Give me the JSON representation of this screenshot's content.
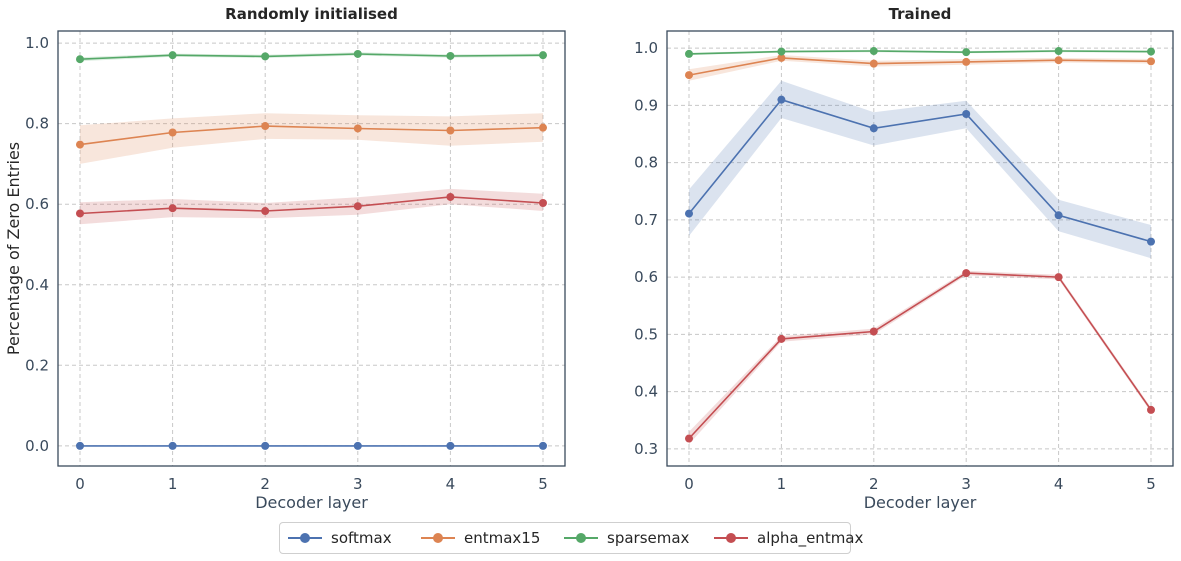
{
  "colors": {
    "softmax": "#4c72b0",
    "entmax15": "#dd8452",
    "sparsemax": "#55a868",
    "alpha_entmax": "#c44e52",
    "axis": "#3a4a5c",
    "grid": "#c8c8c8",
    "tick_text": "#3a4a5c"
  },
  "legend": {
    "entries": [
      "softmax",
      "entmax15",
      "sparsemax",
      "alpha_entmax"
    ],
    "placement": "bottom-center"
  },
  "chart_data": [
    {
      "type": "line",
      "title": "Randomly initialised",
      "xlabel": "Decoder layer",
      "ylabel": "Percentage of Zero Entries",
      "x": [
        0,
        1,
        2,
        3,
        4,
        5
      ],
      "xticks": [
        "0",
        "1",
        "2",
        "3",
        "4",
        "5"
      ],
      "ylim": [
        -0.05,
        1.03
      ],
      "yticks": [
        "0.0",
        "0.2",
        "0.4",
        "0.6",
        "0.8",
        "1.0"
      ],
      "grid": true,
      "series": [
        {
          "name": "softmax",
          "values": [
            0.0,
            0.0,
            0.0,
            0.0,
            0.0,
            0.0
          ],
          "lower": [
            0.0,
            0.0,
            0.0,
            0.0,
            0.0,
            0.0
          ],
          "upper": [
            0.0,
            0.0,
            0.0,
            0.0,
            0.0,
            0.0
          ]
        },
        {
          "name": "entmax15",
          "values": [
            0.748,
            0.778,
            0.794,
            0.788,
            0.783,
            0.79
          ],
          "lower": [
            0.7,
            0.74,
            0.762,
            0.76,
            0.745,
            0.755
          ],
          "upper": [
            0.796,
            0.813,
            0.826,
            0.821,
            0.818,
            0.826
          ]
        },
        {
          "name": "sparsemax",
          "values": [
            0.96,
            0.97,
            0.967,
            0.973,
            0.968,
            0.97
          ],
          "lower": [
            0.955,
            0.966,
            0.963,
            0.969,
            0.964,
            0.966
          ],
          "upper": [
            0.965,
            0.974,
            0.971,
            0.977,
            0.972,
            0.974
          ]
        },
        {
          "name": "alpha_entmax",
          "values": [
            0.577,
            0.59,
            0.583,
            0.595,
            0.618,
            0.603
          ],
          "lower": [
            0.55,
            0.568,
            0.565,
            0.574,
            0.6,
            0.583
          ],
          "upper": [
            0.605,
            0.613,
            0.603,
            0.617,
            0.638,
            0.626
          ]
        }
      ]
    },
    {
      "type": "line",
      "title": "Trained",
      "xlabel": "Decoder layer",
      "ylabel": "",
      "x": [
        0,
        1,
        2,
        3,
        4,
        5
      ],
      "xticks": [
        "0",
        "1",
        "2",
        "3",
        "4",
        "5"
      ],
      "ylim": [
        0.27,
        1.03
      ],
      "yticks": [
        "0.3",
        "0.4",
        "0.5",
        "0.6",
        "0.7",
        "0.8",
        "0.9",
        "1.0"
      ],
      "grid": true,
      "series": [
        {
          "name": "softmax",
          "values": [
            0.711,
            0.91,
            0.86,
            0.885,
            0.708,
            0.662
          ],
          "lower": [
            0.672,
            0.878,
            0.83,
            0.86,
            0.68,
            0.633
          ],
          "upper": [
            0.753,
            0.943,
            0.888,
            0.908,
            0.735,
            0.691
          ]
        },
        {
          "name": "entmax15",
          "values": [
            0.953,
            0.983,
            0.973,
            0.976,
            0.979,
            0.977
          ],
          "lower": [
            0.943,
            0.978,
            0.968,
            0.971,
            0.975,
            0.973
          ],
          "upper": [
            0.963,
            0.988,
            0.978,
            0.981,
            0.983,
            0.981
          ]
        },
        {
          "name": "sparsemax",
          "values": [
            0.99,
            0.994,
            0.995,
            0.993,
            0.995,
            0.994
          ],
          "lower": [
            0.988,
            0.992,
            0.993,
            0.991,
            0.993,
            0.992
          ],
          "upper": [
            0.992,
            0.996,
            0.997,
            0.995,
            0.997,
            0.996
          ]
        },
        {
          "name": "alpha_entmax",
          "values": [
            0.318,
            0.492,
            0.505,
            0.607,
            0.6,
            0.368
          ],
          "lower": [
            0.308,
            0.487,
            0.5,
            0.603,
            0.596,
            0.364
          ],
          "upper": [
            0.33,
            0.497,
            0.51,
            0.611,
            0.604,
            0.372
          ]
        }
      ]
    }
  ]
}
